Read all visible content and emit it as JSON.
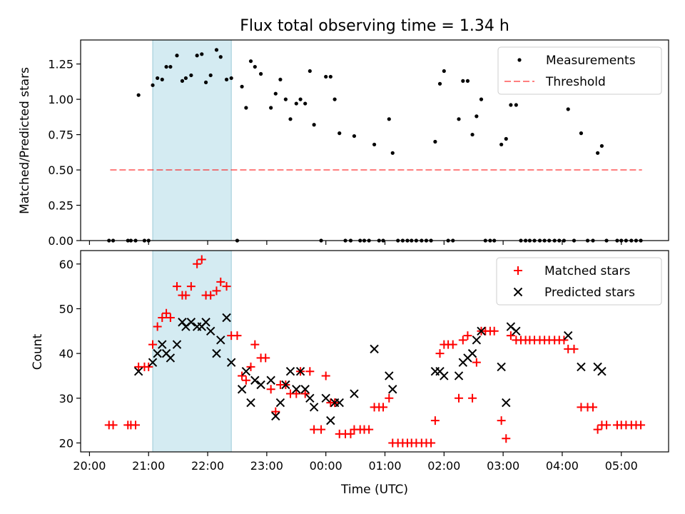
{
  "chart_data": {
    "type": "scatter",
    "title": "Flux total observing time = 1.34 h",
    "xlabel": "Time (UTC)",
    "x_unit": "hours since 20:00 UTC",
    "x_ticks": [
      {
        "value": 0,
        "label": "20:00"
      },
      {
        "value": 1,
        "label": "21:00"
      },
      {
        "value": 2,
        "label": "22:00"
      },
      {
        "value": 3,
        "label": "23:00"
      },
      {
        "value": 4,
        "label": "00:00"
      },
      {
        "value": 5,
        "label": "01:00"
      },
      {
        "value": 6,
        "label": "02:00"
      },
      {
        "value": 7,
        "label": "03:00"
      },
      {
        "value": 8,
        "label": "04:00"
      },
      {
        "value": 9,
        "label": "05:00"
      }
    ],
    "xlim": [
      -0.15,
      9.8
    ],
    "shaded_span": [
      1.07,
      2.4
    ],
    "top_panel": {
      "ylabel": "Matched/Predicted stars",
      "ylim": [
        0,
        1.42
      ],
      "y_ticks": [
        "0.00",
        "0.25",
        "0.50",
        "0.75",
        "1.00",
        "1.25"
      ],
      "threshold": {
        "name": "Threshold",
        "value": 0.5,
        "x_range": [
          0.35,
          9.35
        ]
      },
      "legend": [
        "Measurements",
        "Threshold"
      ],
      "measurements": [
        [
          0.33,
          0
        ],
        [
          0.4,
          0
        ],
        [
          0.65,
          0
        ],
        [
          0.7,
          0
        ],
        [
          0.78,
          0
        ],
        [
          0.93,
          0
        ],
        [
          1.0,
          0
        ],
        [
          0.83,
          1.03
        ],
        [
          1.07,
          1.1
        ],
        [
          1.15,
          1.15
        ],
        [
          1.23,
          1.14
        ],
        [
          1.3,
          1.23
        ],
        [
          1.37,
          1.23
        ],
        [
          1.48,
          1.31
        ],
        [
          1.57,
          1.13
        ],
        [
          1.63,
          1.15
        ],
        [
          1.72,
          1.17
        ],
        [
          1.82,
          1.31
        ],
        [
          1.9,
          1.32
        ],
        [
          1.97,
          1.12
        ],
        [
          2.05,
          1.17
        ],
        [
          2.15,
          1.35
        ],
        [
          2.22,
          1.3
        ],
        [
          2.32,
          1.14
        ],
        [
          2.4,
          1.15
        ],
        [
          2.5,
          0
        ],
        [
          2.58,
          1.09
        ],
        [
          2.65,
          0.94
        ],
        [
          2.73,
          1.27
        ],
        [
          2.8,
          1.23
        ],
        [
          2.9,
          1.18
        ],
        [
          3.07,
          0.94
        ],
        [
          3.15,
          1.04
        ],
        [
          3.23,
          1.14
        ],
        [
          3.32,
          1.0
        ],
        [
          3.4,
          0.86
        ],
        [
          3.5,
          0.97
        ],
        [
          3.57,
          1.0
        ],
        [
          3.65,
          0.97
        ],
        [
          3.73,
          1.2
        ],
        [
          3.8,
          0.82
        ],
        [
          3.92,
          0
        ],
        [
          4.0,
          1.16
        ],
        [
          4.08,
          1.16
        ],
        [
          4.15,
          1.0
        ],
        [
          4.23,
          0.76
        ],
        [
          4.33,
          0
        ],
        [
          4.42,
          0
        ],
        [
          4.48,
          0.74
        ],
        [
          4.58,
          0
        ],
        [
          4.65,
          0
        ],
        [
          4.73,
          0
        ],
        [
          4.82,
          0.68
        ],
        [
          4.9,
          0
        ],
        [
          4.97,
          0
        ],
        [
          5.07,
          0.86
        ],
        [
          5.13,
          0.62
        ],
        [
          5.22,
          0
        ],
        [
          5.3,
          0
        ],
        [
          5.38,
          0
        ],
        [
          5.45,
          0
        ],
        [
          5.53,
          0
        ],
        [
          5.62,
          0
        ],
        [
          5.7,
          0
        ],
        [
          5.78,
          0
        ],
        [
          5.85,
          0.7
        ],
        [
          5.93,
          1.11
        ],
        [
          6.0,
          1.2
        ],
        [
          6.07,
          0
        ],
        [
          6.15,
          0
        ],
        [
          6.25,
          0.86
        ],
        [
          6.32,
          1.13
        ],
        [
          6.4,
          1.13
        ],
        [
          6.48,
          0.75
        ],
        [
          6.55,
          0.88
        ],
        [
          6.63,
          1.0
        ],
        [
          6.7,
          0
        ],
        [
          6.78,
          0
        ],
        [
          6.85,
          0
        ],
        [
          6.97,
          0.68
        ],
        [
          7.05,
          0.72
        ],
        [
          7.13,
          0.96
        ],
        [
          7.22,
          0.96
        ],
        [
          7.3,
          0
        ],
        [
          7.38,
          0
        ],
        [
          7.45,
          0
        ],
        [
          7.53,
          0
        ],
        [
          7.62,
          0
        ],
        [
          7.7,
          0
        ],
        [
          7.78,
          0
        ],
        [
          7.87,
          0
        ],
        [
          7.95,
          0
        ],
        [
          8.03,
          0
        ],
        [
          8.1,
          0.93
        ],
        [
          8.2,
          0
        ],
        [
          8.32,
          0.76
        ],
        [
          8.43,
          0
        ],
        [
          8.52,
          0
        ],
        [
          8.6,
          0.62
        ],
        [
          8.67,
          0.67
        ],
        [
          8.75,
          0
        ],
        [
          8.93,
          0
        ],
        [
          9.0,
          0
        ],
        [
          9.08,
          0
        ],
        [
          9.17,
          0
        ],
        [
          9.25,
          0
        ],
        [
          9.33,
          0
        ]
      ]
    },
    "bottom_panel": {
      "ylabel": "Count",
      "ylim": [
        18,
        63
      ],
      "y_ticks": [
        "20",
        "30",
        "40",
        "50",
        "60"
      ],
      "legend": [
        "Matched stars",
        "Predicted stars"
      ],
      "series": [
        {
          "name": "Matched stars",
          "color": "#ff0000",
          "marker": "+",
          "points": [
            [
              0.33,
              24
            ],
            [
              0.4,
              24
            ],
            [
              0.65,
              24
            ],
            [
              0.7,
              24
            ],
            [
              0.78,
              24
            ],
            [
              0.83,
              37
            ],
            [
              0.93,
              37
            ],
            [
              1.0,
              37
            ],
            [
              1.07,
              42
            ],
            [
              1.15,
              46
            ],
            [
              1.23,
              48
            ],
            [
              1.3,
              49
            ],
            [
              1.37,
              48
            ],
            [
              1.48,
              55
            ],
            [
              1.57,
              53
            ],
            [
              1.63,
              53
            ],
            [
              1.72,
              55
            ],
            [
              1.82,
              60
            ],
            [
              1.9,
              61
            ],
            [
              1.97,
              53
            ],
            [
              2.05,
              53
            ],
            [
              2.15,
              54
            ],
            [
              2.22,
              56
            ],
            [
              2.32,
              55
            ],
            [
              2.4,
              44
            ],
            [
              2.5,
              44
            ],
            [
              2.58,
              35
            ],
            [
              2.65,
              34
            ],
            [
              2.73,
              37
            ],
            [
              2.8,
              42
            ],
            [
              2.9,
              39
            ],
            [
              2.98,
              39
            ],
            [
              3.07,
              32
            ],
            [
              3.15,
              27
            ],
            [
              3.23,
              33
            ],
            [
              3.32,
              33
            ],
            [
              3.4,
              31
            ],
            [
              3.5,
              31
            ],
            [
              3.57,
              36
            ],
            [
              3.65,
              31
            ],
            [
              3.73,
              36
            ],
            [
              3.8,
              23
            ],
            [
              3.92,
              23
            ],
            [
              4.0,
              35
            ],
            [
              4.08,
              29
            ],
            [
              4.15,
              29
            ],
            [
              4.23,
              22
            ],
            [
              4.33,
              22
            ],
            [
              4.42,
              22
            ],
            [
              4.48,
              23
            ],
            [
              4.58,
              23
            ],
            [
              4.65,
              23
            ],
            [
              4.73,
              23
            ],
            [
              4.82,
              28
            ],
            [
              4.9,
              28
            ],
            [
              4.97,
              28
            ],
            [
              5.07,
              30
            ],
            [
              5.13,
              20
            ],
            [
              5.22,
              20
            ],
            [
              5.3,
              20
            ],
            [
              5.38,
              20
            ],
            [
              5.45,
              20
            ],
            [
              5.53,
              20
            ],
            [
              5.62,
              20
            ],
            [
              5.7,
              20
            ],
            [
              5.78,
              20
            ],
            [
              5.85,
              25
            ],
            [
              5.93,
              40
            ],
            [
              6.0,
              42
            ],
            [
              6.07,
              42
            ],
            [
              6.15,
              42
            ],
            [
              6.25,
              30
            ],
            [
              6.32,
              43
            ],
            [
              6.4,
              44
            ],
            [
              6.48,
              30
            ],
            [
              6.55,
              38
            ],
            [
              6.63,
              45
            ],
            [
              6.7,
              45
            ],
            [
              6.78,
              45
            ],
            [
              6.85,
              45
            ],
            [
              6.97,
              25
            ],
            [
              7.05,
              21
            ],
            [
              7.13,
              44
            ],
            [
              7.22,
              43
            ],
            [
              7.3,
              43
            ],
            [
              7.38,
              43
            ],
            [
              7.45,
              43
            ],
            [
              7.53,
              43
            ],
            [
              7.62,
              43
            ],
            [
              7.7,
              43
            ],
            [
              7.78,
              43
            ],
            [
              7.87,
              43
            ],
            [
              7.95,
              43
            ],
            [
              8.03,
              43
            ],
            [
              8.1,
              41
            ],
            [
              8.2,
              41
            ],
            [
              8.32,
              28
            ],
            [
              8.43,
              28
            ],
            [
              8.52,
              28
            ],
            [
              8.6,
              23
            ],
            [
              8.67,
              24
            ],
            [
              8.75,
              24
            ],
            [
              8.93,
              24
            ],
            [
              9.0,
              24
            ],
            [
              9.08,
              24
            ],
            [
              9.17,
              24
            ],
            [
              9.25,
              24
            ],
            [
              9.33,
              24
            ]
          ]
        },
        {
          "name": "Predicted stars",
          "color": "#000000",
          "marker": "x",
          "points": [
            [
              0.83,
              36
            ],
            [
              1.07,
              38
            ],
            [
              1.15,
              40
            ],
            [
              1.23,
              42
            ],
            [
              1.3,
              40
            ],
            [
              1.37,
              39
            ],
            [
              1.48,
              42
            ],
            [
              1.57,
              47
            ],
            [
              1.63,
              46
            ],
            [
              1.72,
              47
            ],
            [
              1.82,
              46
            ],
            [
              1.9,
              46
            ],
            [
              1.97,
              47
            ],
            [
              2.05,
              45
            ],
            [
              2.15,
              40
            ],
            [
              2.22,
              43
            ],
            [
              2.32,
              48
            ],
            [
              2.4,
              38
            ],
            [
              2.58,
              32
            ],
            [
              2.65,
              36
            ],
            [
              2.73,
              29
            ],
            [
              2.8,
              34
            ],
            [
              2.9,
              33
            ],
            [
              3.07,
              34
            ],
            [
              3.15,
              26
            ],
            [
              3.23,
              29
            ],
            [
              3.32,
              33
            ],
            [
              3.4,
              36
            ],
            [
              3.5,
              32
            ],
            [
              3.57,
              36
            ],
            [
              3.65,
              32
            ],
            [
              3.73,
              30
            ],
            [
              3.8,
              28
            ],
            [
              4.0,
              30
            ],
            [
              4.08,
              25
            ],
            [
              4.15,
              29
            ],
            [
              4.23,
              29
            ],
            [
              4.48,
              31
            ],
            [
              4.82,
              41
            ],
            [
              5.07,
              35
            ],
            [
              5.13,
              32
            ],
            [
              5.85,
              36
            ],
            [
              5.93,
              36
            ],
            [
              6.0,
              35
            ],
            [
              6.25,
              35
            ],
            [
              6.32,
              38
            ],
            [
              6.4,
              39
            ],
            [
              6.48,
              40
            ],
            [
              6.55,
              43
            ],
            [
              6.63,
              45
            ],
            [
              6.97,
              37
            ],
            [
              7.05,
              29
            ],
            [
              7.13,
              46
            ],
            [
              7.22,
              45
            ],
            [
              8.1,
              44
            ],
            [
              8.32,
              37
            ],
            [
              8.6,
              37
            ],
            [
              8.67,
              36
            ]
          ]
        }
      ]
    }
  }
}
